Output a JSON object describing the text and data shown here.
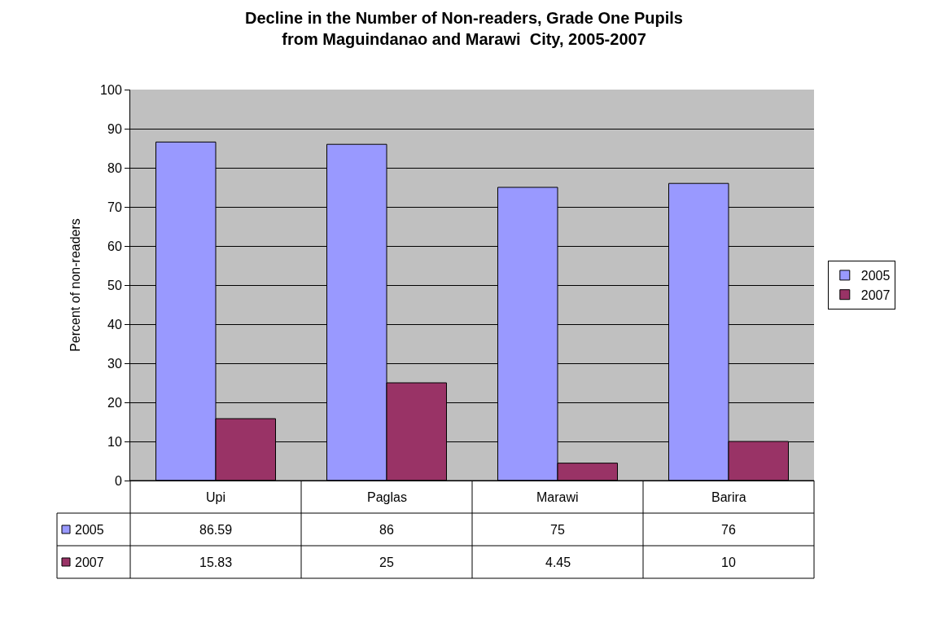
{
  "chart_data": {
    "type": "bar",
    "title": "Decline in the Number of Non-readers, Grade One Pupils\nfrom Maguindanao and Marawi  City, 2005-2007",
    "ylabel": "Percent of non-readers",
    "categories": [
      "Upi",
      "Paglas",
      "Marawi",
      "Barira"
    ],
    "series": [
      {
        "name": "2005",
        "color": "#9999ff",
        "values": [
          86.59,
          86,
          75,
          76
        ]
      },
      {
        "name": "2007",
        "color": "#993366",
        "values": [
          15.83,
          25,
          4.45,
          10
        ]
      }
    ],
    "ylim": [
      0,
      100
    ],
    "yticks": [
      0,
      10,
      20,
      30,
      40,
      50,
      60,
      70,
      80,
      90,
      100
    ],
    "grid": "y",
    "legend": "right",
    "data_labels": true
  }
}
